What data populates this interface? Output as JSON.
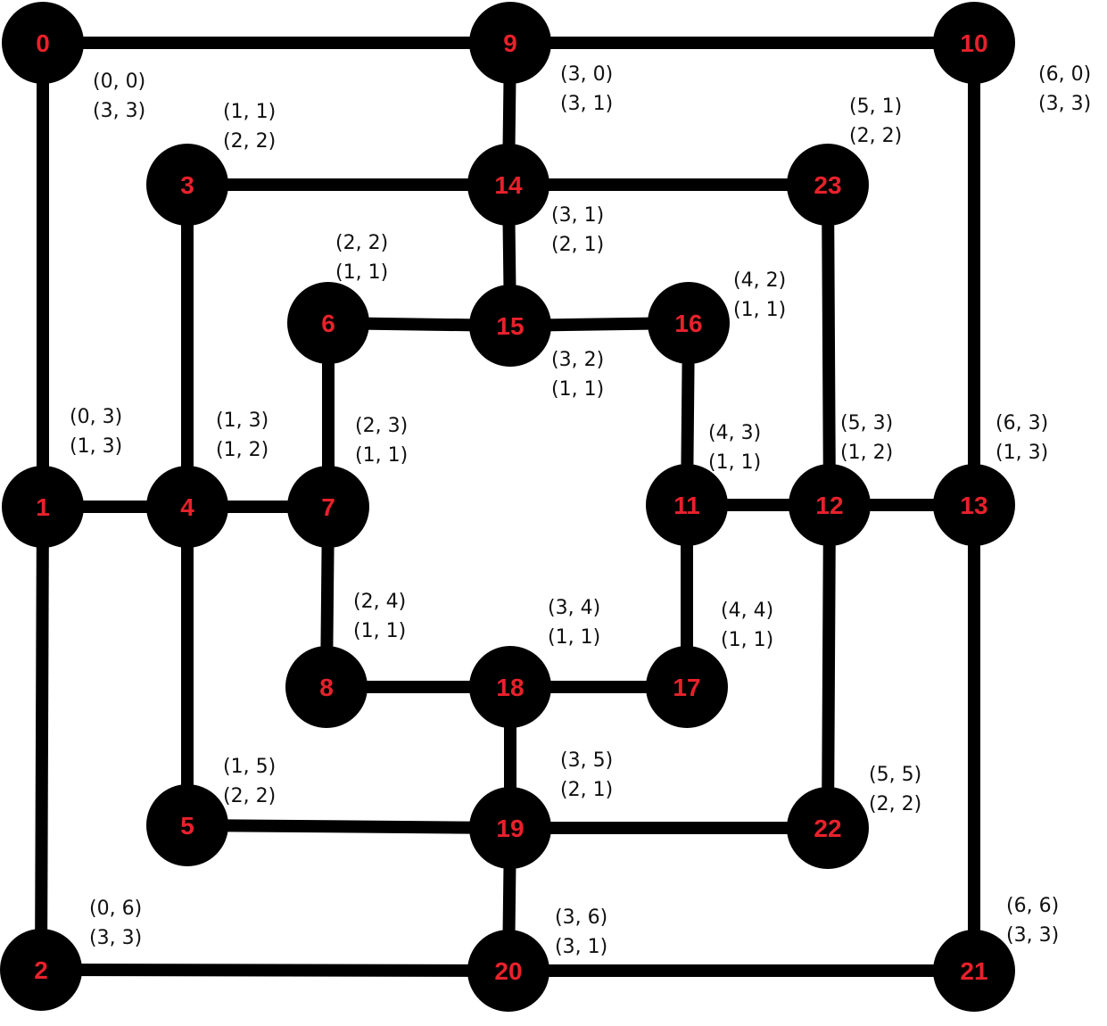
{
  "colors": {
    "line": "#000000",
    "node": "#000000",
    "node_label": "#e8212b",
    "coord_text": "#111111"
  },
  "nodes": [
    {
      "id": "0",
      "coord": "(0, 0)",
      "size": "(3, 3)"
    },
    {
      "id": "1",
      "coord": "(0, 3)",
      "size": "(1, 3)"
    },
    {
      "id": "2",
      "coord": "(0, 6)",
      "size": "(3, 3)"
    },
    {
      "id": "3",
      "coord": "(1, 1)",
      "size": "(2, 2)"
    },
    {
      "id": "4",
      "coord": "(1, 3)",
      "size": "(1, 2)"
    },
    {
      "id": "5",
      "coord": "(1, 5)",
      "size": "(2, 2)"
    },
    {
      "id": "6",
      "coord": "(2, 2)",
      "size": "(1, 1)"
    },
    {
      "id": "7",
      "coord": "(2, 3)",
      "size": "(1, 1)"
    },
    {
      "id": "8",
      "coord": "(2, 4)",
      "size": "(1, 1)"
    },
    {
      "id": "9",
      "coord": "(3, 0)",
      "size": "(3, 1)"
    },
    {
      "id": "10",
      "coord": "(6, 0)",
      "size": "(3, 3)"
    },
    {
      "id": "11",
      "coord": "(4, 3)",
      "size": "(1, 1)"
    },
    {
      "id": "12",
      "coord": "(5, 3)",
      "size": "(1, 2)"
    },
    {
      "id": "13",
      "coord": "(6, 3)",
      "size": "(1, 3)"
    },
    {
      "id": "14",
      "coord": "(3, 1)",
      "size": "(2, 1)"
    },
    {
      "id": "15",
      "coord": "(3, 2)",
      "size": "(1, 1)"
    },
    {
      "id": "16",
      "coord": "(4, 2)",
      "size": "(1, 1)"
    },
    {
      "id": "17",
      "coord": "(4, 4)",
      "size": "(1, 1)"
    },
    {
      "id": "18",
      "coord": "(3, 4)",
      "size": "(1, 1)"
    },
    {
      "id": "19",
      "coord": "(3, 5)",
      "size": "(2, 1)"
    },
    {
      "id": "20",
      "coord": "(3, 6)",
      "size": "(3, 1)"
    },
    {
      "id": "21",
      "coord": "(6, 6)",
      "size": "(3, 3)"
    },
    {
      "id": "22",
      "coord": "(5, 5)",
      "size": "(2, 2)"
    },
    {
      "id": "23",
      "coord": "(5, 1)",
      "size": "(2, 2)"
    }
  ]
}
